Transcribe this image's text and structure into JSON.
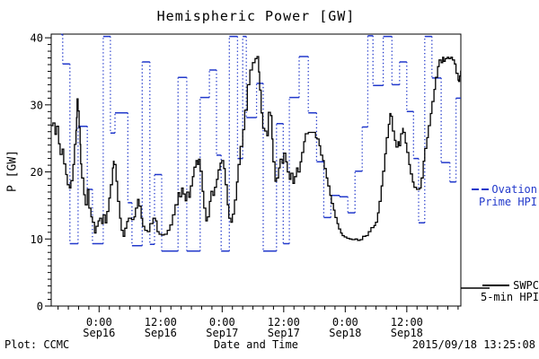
{
  "title": "Hemispheric Power [GW]",
  "colors": {
    "ovation": "#2239cb",
    "swpc": "#000000",
    "axis": "#000000",
    "background": "#ffffff"
  },
  "axes": {
    "x": {
      "label": "Date and Time",
      "unit": "hours since 2015-09-15 00:00 UT",
      "start_hours": 14.66,
      "end_hours": 94.54,
      "minor_step_hours": 2,
      "major_ticks": [
        {
          "t": 24,
          "time": "0:00",
          "date": "Sep16"
        },
        {
          "t": 36,
          "time": "12:00",
          "date": "Sep16"
        },
        {
          "t": 48,
          "time": "0:00",
          "date": "Sep17"
        },
        {
          "t": 60,
          "time": "12:00",
          "date": "Sep17"
        },
        {
          "t": 72,
          "time": "0:00",
          "date": "Sep18"
        },
        {
          "t": 84,
          "time": "12:00",
          "date": "Sep18"
        }
      ]
    },
    "y": {
      "label": "P [GW]",
      "min": 0,
      "max": 40,
      "top_value": 40.55,
      "minor_step": 1,
      "major_ticks": [
        0,
        10,
        20,
        30,
        40
      ]
    }
  },
  "legend": {
    "ovation": {
      "line1": "Ovation",
      "line2": "Prime HPI"
    },
    "swpc": {
      "line1": "SWPC",
      "line2": "5-min HPI"
    }
  },
  "footer": {
    "left": "Plot: CCMC",
    "center": "Date and Time",
    "right": "2015/09/18 13:25:08"
  },
  "chart_data": {
    "type": "line",
    "title": "Hemispheric Power [GW]",
    "xlabel": "Date and Time",
    "ylabel": "P [GW]",
    "ylim": [
      0,
      40
    ],
    "xlim_hours_since_sep15_0000UT": [
      14.66,
      94.54
    ],
    "grid": false,
    "legend_position": "right",
    "series": [
      {
        "name": "Ovation Prime HPI",
        "style": "steps-dotted",
        "color": "#2239cb",
        "points_t_gw": [
          [
            16.6,
            40.5
          ],
          [
            16.9,
            36.1
          ],
          [
            18.3,
            9.3
          ],
          [
            19.9,
            26.8
          ],
          [
            21.7,
            17.4
          ],
          [
            22.7,
            9.3
          ],
          [
            24.8,
            40.2
          ],
          [
            26.2,
            25.8
          ],
          [
            27.1,
            28.8
          ],
          [
            29.6,
            15.4
          ],
          [
            30.4,
            9.0
          ],
          [
            32.4,
            36.4
          ],
          [
            33.9,
            9.2
          ],
          [
            34.8,
            19.6
          ],
          [
            36.2,
            8.2
          ],
          [
            39.4,
            34.1
          ],
          [
            41.1,
            8.2
          ],
          [
            43.7,
            31.1
          ],
          [
            45.5,
            35.2
          ],
          [
            46.9,
            22.5
          ],
          [
            47.8,
            8.2
          ],
          [
            49.4,
            40.2
          ],
          [
            51.0,
            22.0
          ],
          [
            52.0,
            40.2
          ],
          [
            52.7,
            28.1
          ],
          [
            54.7,
            33.2
          ],
          [
            56.0,
            8.2
          ],
          [
            58.6,
            27.2
          ],
          [
            59.9,
            9.3
          ],
          [
            61.1,
            31.1
          ],
          [
            63.0,
            37.2
          ],
          [
            64.8,
            28.8
          ],
          [
            66.4,
            21.5
          ],
          [
            67.8,
            13.2
          ],
          [
            69.2,
            16.5
          ],
          [
            70.9,
            16.3
          ],
          [
            72.5,
            13.9
          ],
          [
            73.9,
            20.1
          ],
          [
            75.3,
            26.7
          ],
          [
            76.4,
            40.3
          ],
          [
            77.4,
            32.9
          ],
          [
            79.4,
            40.2
          ],
          [
            81.1,
            33.0
          ],
          [
            82.6,
            36.4
          ],
          [
            84.0,
            29.0
          ],
          [
            85.3,
            22.0
          ],
          [
            86.3,
            12.4
          ],
          [
            87.5,
            40.2
          ],
          [
            88.9,
            34.0
          ],
          [
            90.7,
            21.4
          ],
          [
            92.4,
            18.5
          ],
          [
            93.6,
            31.0
          ]
        ]
      },
      {
        "name": "SWPC 5-min HPI",
        "style": "steps-solid",
        "color": "#000000",
        "points_t_gw": [
          [
            14.7,
            26.9
          ],
          [
            15.0,
            27.3
          ],
          [
            15.4,
            25.6
          ],
          [
            15.7,
            26.8
          ],
          [
            16.1,
            24.2
          ],
          [
            16.4,
            22.6
          ],
          [
            16.8,
            23.4
          ],
          [
            17.1,
            21.2
          ],
          [
            17.5,
            19.6
          ],
          [
            17.8,
            18.1
          ],
          [
            18.2,
            17.6
          ],
          [
            18.5,
            18.7
          ],
          [
            18.9,
            21.1
          ],
          [
            19.2,
            24.1
          ],
          [
            19.5,
            26.2
          ],
          [
            19.6,
            28.1
          ],
          [
            19.7,
            30.9
          ],
          [
            19.9,
            29.1
          ],
          [
            20.1,
            26.6
          ],
          [
            20.3,
            24.1
          ],
          [
            20.4,
            21.2
          ],
          [
            20.6,
            19.1
          ],
          [
            21.0,
            16.6
          ],
          [
            21.3,
            15.1
          ],
          [
            21.7,
            17.4
          ],
          [
            22.0,
            14.6
          ],
          [
            22.4,
            13.3
          ],
          [
            22.7,
            12.5
          ],
          [
            23.1,
            10.9
          ],
          [
            23.4,
            11.9
          ],
          [
            23.8,
            12.7
          ],
          [
            24.1,
            13.1
          ],
          [
            24.5,
            12.3
          ],
          [
            24.8,
            13.6
          ],
          [
            25.2,
            12.4
          ],
          [
            25.5,
            14.1
          ],
          [
            25.9,
            16.1
          ],
          [
            26.2,
            18.1
          ],
          [
            26.6,
            20.6
          ],
          [
            26.8,
            21.6
          ],
          [
            26.9,
            21.1
          ],
          [
            27.3,
            18.6
          ],
          [
            27.6,
            15.6
          ],
          [
            28.0,
            13.1
          ],
          [
            28.3,
            11.3
          ],
          [
            28.7,
            10.4
          ],
          [
            29.0,
            11.6
          ],
          [
            29.4,
            12.6
          ],
          [
            29.7,
            13.1
          ],
          [
            30.3,
            12.9
          ],
          [
            30.8,
            13.3
          ],
          [
            31.1,
            14.6
          ],
          [
            31.5,
            15.9
          ],
          [
            31.8,
            14.9
          ],
          [
            32.2,
            13.1
          ],
          [
            32.5,
            11.9
          ],
          [
            32.9,
            11.3
          ],
          [
            33.4,
            11.1
          ],
          [
            33.9,
            12.3
          ],
          [
            34.5,
            13.1
          ],
          [
            35.0,
            12.7
          ],
          [
            35.3,
            11.1
          ],
          [
            35.7,
            10.7
          ],
          [
            36.2,
            10.6
          ],
          [
            36.7,
            10.7
          ],
          [
            37.3,
            11.3
          ],
          [
            37.8,
            12.1
          ],
          [
            38.3,
            13.6
          ],
          [
            38.8,
            15.1
          ],
          [
            39.4,
            16.9
          ],
          [
            39.7,
            16.3
          ],
          [
            40.1,
            17.6
          ],
          [
            40.4,
            16.7
          ],
          [
            40.8,
            15.7
          ],
          [
            41.1,
            17.0
          ],
          [
            41.5,
            16.2
          ],
          [
            41.8,
            17.9
          ],
          [
            42.2,
            19.3
          ],
          [
            42.5,
            20.7
          ],
          [
            42.9,
            21.7
          ],
          [
            43.2,
            21.1
          ],
          [
            43.4,
            21.9
          ],
          [
            43.7,
            20.1
          ],
          [
            44.1,
            17.1
          ],
          [
            44.4,
            14.6
          ],
          [
            44.8,
            12.7
          ],
          [
            45.1,
            13.3
          ],
          [
            45.5,
            15.6
          ],
          [
            45.8,
            17.1
          ],
          [
            46.2,
            16.5
          ],
          [
            46.5,
            17.7
          ],
          [
            46.9,
            18.9
          ],
          [
            47.2,
            20.3
          ],
          [
            47.6,
            21.3
          ],
          [
            47.9,
            21.7
          ],
          [
            48.3,
            20.5
          ],
          [
            48.6,
            18.1
          ],
          [
            49.0,
            15.1
          ],
          [
            49.3,
            13.1
          ],
          [
            49.7,
            12.5
          ],
          [
            50.0,
            13.7
          ],
          [
            50.4,
            15.8
          ],
          [
            50.8,
            18.5
          ],
          [
            51.1,
            21.1
          ],
          [
            51.5,
            23.8
          ],
          [
            52.0,
            26.3
          ],
          [
            52.4,
            29.2
          ],
          [
            52.9,
            33.0
          ],
          [
            53.4,
            35.2
          ],
          [
            53.9,
            36.3
          ],
          [
            54.4,
            36.9
          ],
          [
            54.8,
            37.2
          ],
          [
            55.1,
            34.9
          ],
          [
            55.3,
            32.2
          ],
          [
            55.6,
            28.8
          ],
          [
            55.9,
            26.5
          ],
          [
            56.3,
            26.1
          ],
          [
            56.7,
            25.4
          ],
          [
            57.0,
            28.9
          ],
          [
            57.4,
            28.4
          ],
          [
            57.7,
            24.9
          ],
          [
            57.9,
            21.5
          ],
          [
            58.3,
            18.6
          ],
          [
            58.6,
            19.1
          ],
          [
            59.0,
            20.6
          ],
          [
            59.3,
            21.9
          ],
          [
            59.7,
            21.3
          ],
          [
            60.0,
            22.8
          ],
          [
            60.4,
            21.5
          ],
          [
            60.7,
            20.0
          ],
          [
            61.1,
            18.9
          ],
          [
            61.4,
            19.8
          ],
          [
            61.8,
            18.3
          ],
          [
            62.1,
            19.3
          ],
          [
            62.5,
            20.6
          ],
          [
            62.8,
            20.0
          ],
          [
            63.2,
            21.5
          ],
          [
            63.5,
            22.9
          ],
          [
            63.9,
            24.5
          ],
          [
            64.2,
            25.7
          ],
          [
            64.8,
            25.9
          ],
          [
            65.3,
            25.9
          ],
          [
            65.8,
            25.9
          ],
          [
            66.2,
            25.1
          ],
          [
            66.5,
            24.9
          ],
          [
            66.9,
            23.9
          ],
          [
            67.2,
            22.5
          ],
          [
            67.6,
            21.7
          ],
          [
            67.9,
            20.5
          ],
          [
            68.3,
            19.1
          ],
          [
            68.6,
            17.9
          ],
          [
            69.0,
            16.5
          ],
          [
            69.3,
            15.3
          ],
          [
            69.7,
            14.3
          ],
          [
            70.0,
            13.2
          ],
          [
            70.4,
            12.3
          ],
          [
            70.7,
            11.5
          ],
          [
            71.1,
            10.9
          ],
          [
            71.4,
            10.5
          ],
          [
            71.8,
            10.3
          ],
          [
            72.3,
            10.1
          ],
          [
            72.8,
            10.0
          ],
          [
            73.3,
            9.9
          ],
          [
            73.9,
            10.0
          ],
          [
            74.4,
            9.8
          ],
          [
            74.9,
            9.9
          ],
          [
            75.4,
            10.4
          ],
          [
            76.0,
            10.5
          ],
          [
            76.5,
            11.1
          ],
          [
            77.0,
            11.7
          ],
          [
            77.6,
            12.0
          ],
          [
            77.9,
            12.5
          ],
          [
            78.3,
            13.9
          ],
          [
            78.6,
            15.6
          ],
          [
            79.0,
            17.9
          ],
          [
            79.3,
            20.1
          ],
          [
            79.7,
            22.7
          ],
          [
            80.0,
            25.1
          ],
          [
            80.4,
            27.1
          ],
          [
            80.7,
            28.7
          ],
          [
            80.9,
            28.3
          ],
          [
            81.2,
            26.1
          ],
          [
            81.6,
            24.7
          ],
          [
            81.9,
            23.7
          ],
          [
            82.3,
            24.5
          ],
          [
            82.5,
            23.9
          ],
          [
            82.8,
            25.7
          ],
          [
            83.2,
            26.5
          ],
          [
            83.3,
            25.9
          ],
          [
            83.7,
            24.3
          ],
          [
            84.0,
            22.9
          ],
          [
            84.4,
            21.1
          ],
          [
            84.7,
            19.7
          ],
          [
            85.1,
            18.5
          ],
          [
            85.4,
            17.7
          ],
          [
            85.9,
            17.4
          ],
          [
            86.5,
            17.6
          ],
          [
            86.8,
            19.1
          ],
          [
            87.2,
            21.6
          ],
          [
            87.5,
            23.5
          ],
          [
            87.9,
            25.1
          ],
          [
            88.2,
            26.9
          ],
          [
            88.6,
            28.7
          ],
          [
            88.9,
            30.5
          ],
          [
            89.3,
            32.3
          ],
          [
            89.6,
            34.1
          ],
          [
            90.0,
            35.7
          ],
          [
            90.3,
            36.7
          ],
          [
            90.7,
            36.3
          ],
          [
            91.0,
            37.1
          ],
          [
            91.2,
            36.5
          ],
          [
            91.5,
            36.9
          ],
          [
            91.9,
            37.1
          ],
          [
            92.2,
            36.9
          ],
          [
            92.6,
            37.1
          ],
          [
            92.9,
            36.7
          ],
          [
            93.3,
            36.1
          ],
          [
            93.6,
            34.7
          ],
          [
            94.0,
            33.7
          ],
          [
            94.1,
            33.5
          ],
          [
            94.3,
            34.3
          ],
          [
            94.5,
            35.1
          ]
        ]
      }
    ]
  }
}
